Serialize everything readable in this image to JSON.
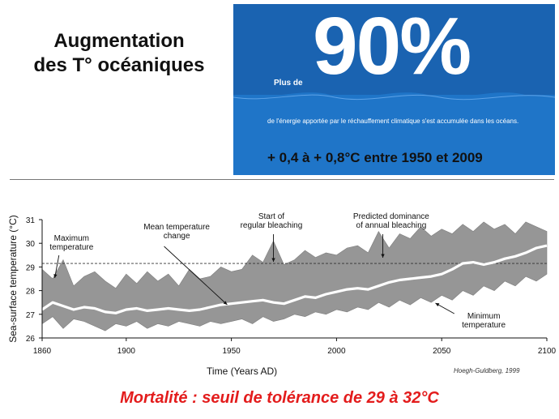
{
  "title": {
    "line1": "Augmentation",
    "line2": "des T° océaniques"
  },
  "energy_panel": {
    "prefix": "Plus de",
    "percent": "90%",
    "description": "de l'énergie apportée par le réchauffement climatique s'est accumulée dans les océans.",
    "temperature_increase": "+ 0,4 à + 0,8°C entre 1950 et 2009",
    "colors": {
      "panel": "#1f75c8",
      "band": "#1a63b1",
      "text": "#ffffff"
    }
  },
  "chart_data": {
    "type": "area",
    "xlabel": "Time (Years AD)",
    "ylabel": "Sea-surface temperature (°C)",
    "xlim": [
      1860,
      2100
    ],
    "ylim": [
      26,
      31
    ],
    "x_ticks": [
      "1860",
      "1900",
      "1950",
      "2000",
      "2050",
      "2100"
    ],
    "y_ticks": [
      "26",
      "27",
      "28",
      "29",
      "30",
      "31"
    ],
    "threshold": 29.15,
    "annotations": {
      "maximum_temperature": [
        "Maximum",
        "temperature"
      ],
      "mean_temperature_change": [
        "Mean temperature",
        "change"
      ],
      "start_regular_bleaching": [
        "Start of",
        "regular bleaching"
      ],
      "predicted_dominance": [
        "Predicted dominance",
        "of annual bleaching"
      ],
      "minimum_temperature": [
        "Minimum",
        "temperature"
      ]
    },
    "series": [
      {
        "name": "Mean temperature change",
        "x": [
          1860,
          1865,
          1870,
          1875,
          1880,
          1885,
          1890,
          1895,
          1900,
          1905,
          1910,
          1915,
          1920,
          1925,
          1930,
          1935,
          1940,
          1945,
          1950,
          1955,
          1960,
          1965,
          1970,
          1975,
          1980,
          1985,
          1990,
          1995,
          2000,
          2005,
          2010,
          2015,
          2020,
          2025,
          2030,
          2035,
          2040,
          2045,
          2050,
          2055,
          2060,
          2065,
          2070,
          2075,
          2080,
          2085,
          2090,
          2095,
          2100
        ],
        "values": [
          27.2,
          27.5,
          27.35,
          27.2,
          27.3,
          27.25,
          27.1,
          27.05,
          27.2,
          27.25,
          27.15,
          27.2,
          27.25,
          27.2,
          27.15,
          27.2,
          27.3,
          27.4,
          27.45,
          27.5,
          27.55,
          27.6,
          27.5,
          27.45,
          27.6,
          27.75,
          27.7,
          27.85,
          27.95,
          28.05,
          28.1,
          28.05,
          28.2,
          28.35,
          28.45,
          28.5,
          28.55,
          28.6,
          28.7,
          28.9,
          29.15,
          29.2,
          29.1,
          29.2,
          29.35,
          29.45,
          29.6,
          29.8,
          29.9
        ]
      },
      {
        "name": "Maximum temperature",
        "x": [
          1860,
          1865,
          1870,
          1875,
          1880,
          1885,
          1890,
          1895,
          1900,
          1905,
          1910,
          1915,
          1920,
          1925,
          1930,
          1935,
          1940,
          1945,
          1950,
          1955,
          1960,
          1965,
          1970,
          1975,
          1980,
          1985,
          1990,
          1995,
          2000,
          2005,
          2010,
          2015,
          2020,
          2025,
          2030,
          2035,
          2040,
          2045,
          2050,
          2055,
          2060,
          2065,
          2070,
          2075,
          2080,
          2085,
          2090,
          2095,
          2100
        ],
        "values": [
          28.9,
          28.5,
          29.3,
          28.2,
          28.6,
          28.8,
          28.4,
          28.1,
          28.7,
          28.3,
          28.8,
          28.4,
          28.7,
          28.2,
          28.9,
          28.5,
          28.6,
          29.0,
          28.8,
          28.9,
          29.5,
          29.2,
          30.1,
          29.1,
          29.3,
          29.7,
          29.4,
          29.6,
          29.5,
          29.8,
          29.9,
          29.6,
          30.5,
          29.8,
          30.4,
          30.2,
          30.7,
          30.3,
          30.6,
          30.4,
          30.8,
          30.5,
          30.9,
          30.6,
          30.8,
          30.4,
          30.9,
          30.7,
          30.5
        ]
      },
      {
        "name": "Minimum temperature",
        "x": [
          1860,
          1865,
          1870,
          1875,
          1880,
          1885,
          1890,
          1895,
          1900,
          1905,
          1910,
          1915,
          1920,
          1925,
          1930,
          1935,
          1940,
          1945,
          1950,
          1955,
          1960,
          1965,
          1970,
          1975,
          1980,
          1985,
          1990,
          1995,
          2000,
          2005,
          2010,
          2015,
          2020,
          2025,
          2030,
          2035,
          2040,
          2045,
          2050,
          2055,
          2060,
          2065,
          2070,
          2075,
          2080,
          2085,
          2090,
          2095,
          2100
        ],
        "values": [
          26.6,
          26.9,
          26.4,
          26.8,
          26.7,
          26.5,
          26.3,
          26.6,
          26.5,
          26.7,
          26.4,
          26.6,
          26.5,
          26.7,
          26.6,
          26.5,
          26.7,
          26.6,
          26.7,
          26.8,
          26.6,
          26.9,
          26.7,
          26.8,
          27.0,
          26.9,
          27.1,
          27.0,
          27.2,
          27.1,
          27.3,
          27.2,
          27.5,
          27.3,
          27.6,
          27.4,
          27.7,
          27.5,
          27.8,
          27.6,
          28.0,
          27.8,
          28.2,
          28.0,
          28.4,
          28.2,
          28.6,
          28.4,
          28.7
        ]
      }
    ],
    "colors": {
      "range_fill": "#969696",
      "mean_line": "#ffffff",
      "axis": "#111111"
    }
  },
  "source": "Hoegh-Guldberg, 1999",
  "footer": "Mortalité : seuil de tolérance de 29 à 32°C"
}
